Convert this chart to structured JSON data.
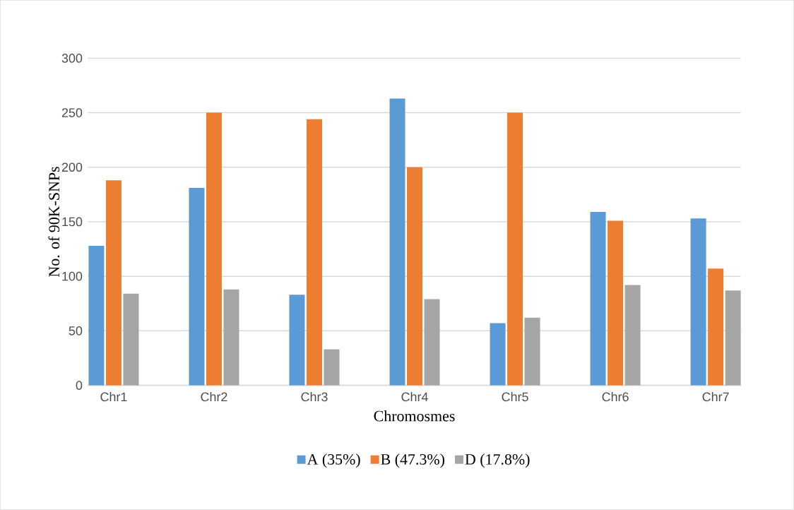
{
  "chart_data": {
    "type": "bar",
    "xlabel": "Chromosmes",
    "ylabel": "No. of 90K-SNPs",
    "categories": [
      "Chr1",
      "Chr2",
      "Chr3",
      "Chr4",
      "Chr5",
      "Chr6",
      "Chr7"
    ],
    "series": [
      {
        "name": "A (35%)",
        "color": "#5b9bd5",
        "values": [
          128,
          181,
          83,
          263,
          57,
          159,
          153
        ]
      },
      {
        "name": "B (47.3%)",
        "color": "#ed7d31",
        "values": [
          188,
          250,
          244,
          200,
          250,
          151,
          107
        ]
      },
      {
        "name": "D (17.8%)",
        "color": "#a5a5a5",
        "values": [
          84,
          88,
          33,
          79,
          62,
          92,
          87
        ]
      }
    ],
    "ylim": [
      0,
      300
    ],
    "yticks": [
      0,
      50,
      100,
      150,
      200,
      250,
      300
    ],
    "grid": "y",
    "legend": "bottom"
  }
}
